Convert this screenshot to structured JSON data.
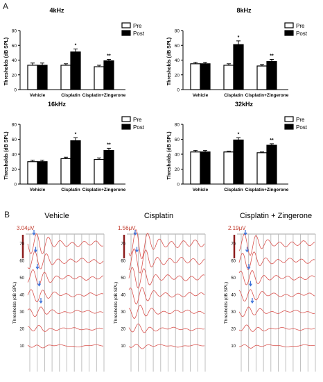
{
  "figure": {
    "panel_a_label": "A",
    "panel_b_label": "B"
  },
  "chart_data": [
    {
      "type": "bar",
      "title": "4kHz",
      "ylabel": "Thresholds (dB SPL)",
      "categories": [
        "Vehicle",
        "Cisplatin",
        "Cisplatin+Zingerone"
      ],
      "ylim": [
        0,
        80
      ],
      "yticks": [
        0,
        20,
        40,
        60,
        80
      ],
      "legend_position": "top-right",
      "series": [
        {
          "name": "Pre",
          "color": "#ffffff",
          "values": [
            33,
            33,
            31
          ],
          "errors": [
            3,
            2,
            2
          ]
        },
        {
          "name": "Post",
          "color": "#000000",
          "values": [
            33,
            51,
            39
          ],
          "errors": [
            3,
            4,
            2
          ]
        }
      ],
      "annotations": [
        "",
        "*",
        "**"
      ]
    },
    {
      "type": "bar",
      "title": "8kHz",
      "ylabel": "Thresholds (dB SPL)",
      "categories": [
        "Vehicle",
        "Cisplatin",
        "Cisplatin+Zingerone"
      ],
      "ylim": [
        0,
        80
      ],
      "yticks": [
        0,
        20,
        40,
        60,
        80
      ],
      "legend_position": "top-right",
      "series": [
        {
          "name": "Pre",
          "color": "#ffffff",
          "values": [
            35,
            33,
            32
          ],
          "errors": [
            2,
            2,
            2
          ]
        },
        {
          "name": "Post",
          "color": "#000000",
          "values": [
            35,
            61,
            38
          ],
          "errors": [
            2,
            5,
            3
          ]
        }
      ],
      "annotations": [
        "",
        "*",
        "**"
      ]
    },
    {
      "type": "bar",
      "title": "16kHz",
      "ylabel": "Thresholds (dB SPL)",
      "categories": [
        "Vehicle",
        "Cisplatin",
        "Cisplatin+Zingerone"
      ],
      "ylim": [
        0,
        80
      ],
      "yticks": [
        0,
        20,
        40,
        60,
        80
      ],
      "legend_position": "top-right",
      "series": [
        {
          "name": "Pre",
          "color": "#ffffff",
          "values": [
            30,
            34,
            33
          ],
          "errors": [
            2,
            2,
            2
          ]
        },
        {
          "name": "Post",
          "color": "#000000",
          "values": [
            30,
            58,
            45
          ],
          "errors": [
            2,
            4,
            3
          ]
        }
      ],
      "annotations": [
        "",
        "*",
        "**"
      ]
    },
    {
      "type": "bar",
      "title": "32kHz",
      "ylabel": "Thresholds (dB SPL)",
      "categories": [
        "Vehicle",
        "Cisplatin",
        "Cisplatin+Zingerone"
      ],
      "ylim": [
        0,
        80
      ],
      "yticks": [
        0,
        20,
        40,
        60,
        80
      ],
      "legend_position": "top-right",
      "series": [
        {
          "name": "Pre",
          "color": "#ffffff",
          "values": [
            43,
            43,
            42
          ],
          "errors": [
            2,
            1,
            1
          ]
        },
        {
          "name": "Post",
          "color": "#000000",
          "values": [
            43,
            59,
            52
          ],
          "errors": [
            2,
            3,
            2
          ]
        }
      ],
      "annotations": [
        "",
        "*",
        "**"
      ]
    }
  ],
  "abr_panels": [
    {
      "title": "Vehicle",
      "scale_label": "3.04μV",
      "ylabel": "Thresholds (dB SPL)",
      "levels": [
        70,
        60,
        50,
        40,
        30,
        20,
        10
      ]
    },
    {
      "title": "Cisplatin",
      "scale_label": "1.56μV",
      "ylabel": "Thresholds (dB SPL)",
      "levels": [
        70,
        60,
        50,
        40,
        30,
        20,
        10
      ]
    },
    {
      "title": "Cisplatin + Zingerone",
      "scale_label": "2.19μV",
      "ylabel": "Thresholds (dB SPL)",
      "levels": [
        70,
        60,
        50,
        40,
        30,
        20,
        10
      ]
    }
  ],
  "colors": {
    "trace": "#d9534f",
    "scale_bar": "#8b1a1a",
    "arrow": "#3a6fd8",
    "gridline": "#b8b8b8",
    "axis": "#000000"
  }
}
